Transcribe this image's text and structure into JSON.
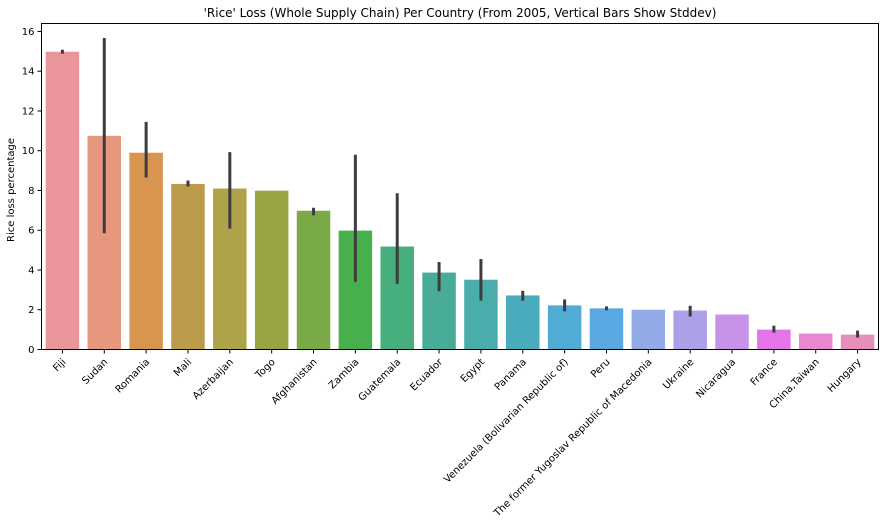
{
  "chart_data": {
    "type": "bar",
    "title": "'Rice' Loss (Whole Supply Chain) Per Country (From 2005, Vertical Bars Show Stddev)",
    "xlabel": "",
    "ylabel": "Rice loss percentage",
    "ylim": [
      0,
      16.4
    ],
    "yticks": [
      0,
      2,
      4,
      6,
      8,
      10,
      12,
      14,
      16
    ],
    "ytick_labels": [
      "0",
      "2",
      "4",
      "6",
      "8",
      "10",
      "12",
      "14",
      "16"
    ],
    "grid": false,
    "legend": "none",
    "categories": [
      "Fiji",
      "Sudan",
      "Romania",
      "Mali",
      "Azerbaijan",
      "Togo",
      "Afghanistan",
      "Zambia",
      "Guatemala",
      "Ecuador",
      "Egypt",
      "Panama",
      "Venezuela (Bolivarian Republic of)",
      "Peru",
      "The former Yugoslav Republic of Macedonia",
      "Ukraine",
      "Nicaragua",
      "France",
      "China,Taiwan",
      "Hungary"
    ],
    "values": [
      14.98,
      10.75,
      9.9,
      8.33,
      8.1,
      7.99,
      6.98,
      5.98,
      5.18,
      3.87,
      3.51,
      2.72,
      2.22,
      2.07,
      2.0,
      1.96,
      1.76,
      1.0,
      0.8,
      0.75
    ],
    "error_low": [
      14.88,
      5.85,
      8.65,
      8.2,
      6.08,
      null,
      6.75,
      3.4,
      3.3,
      2.93,
      2.46,
      2.45,
      1.92,
      1.97,
      null,
      1.66,
      null,
      0.85,
      null,
      0.6
    ],
    "error_high": [
      15.08,
      15.67,
      11.45,
      8.5,
      9.93,
      null,
      7.13,
      9.8,
      7.86,
      4.4,
      4.55,
      2.95,
      2.52,
      2.17,
      null,
      2.2,
      null,
      1.2,
      null,
      0.95
    ],
    "colors": [
      "#ea949c",
      "#e7977e",
      "#d99550",
      "#bc9b4d",
      "#aea34b",
      "#9ba442",
      "#7aaa45",
      "#47b04d",
      "#46ae7d",
      "#48ac98",
      "#4aacab",
      "#4aabbc",
      "#52abd4",
      "#5aa8e2",
      "#93aae8",
      "#ad9fe8",
      "#c793e8",
      "#e474ea",
      "#ea87d0",
      "#e78fbb"
    ]
  }
}
